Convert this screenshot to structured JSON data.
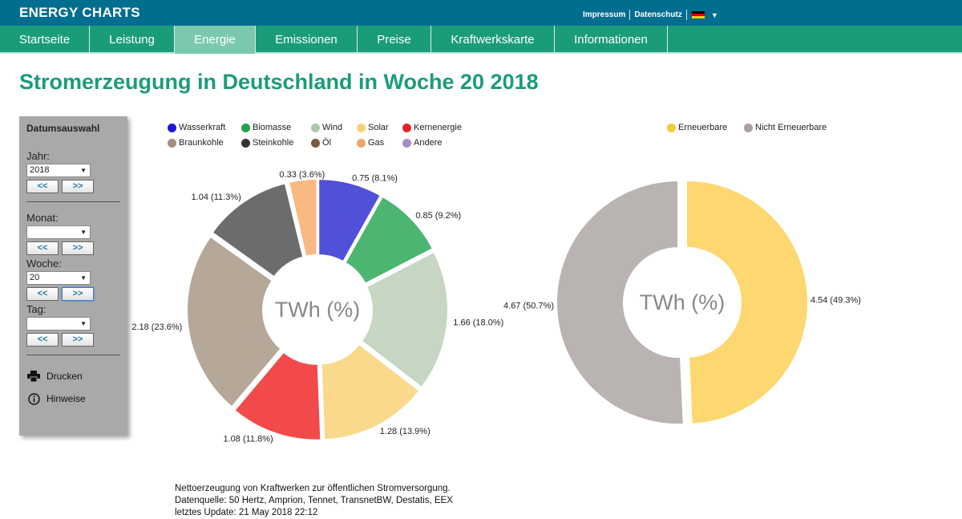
{
  "header": {
    "brand": "ENERGY CHARTS",
    "links": [
      "Impressum",
      "Datenschutz"
    ]
  },
  "nav": {
    "items": [
      "Startseite",
      "Leistung",
      "Energie",
      "Emissionen",
      "Preise",
      "Kraftwerkskarte",
      "Informationen"
    ],
    "active": "Energie"
  },
  "title": "Stromerzeugung in Deutschland in Woche 20 2018",
  "sidebar": {
    "title": "Datumsauswahl",
    "year_label": "Jahr:",
    "year_value": "2018",
    "month_label": "Monat:",
    "month_value": "",
    "week_label": "Woche:",
    "week_value": "20",
    "day_label": "Tag:",
    "day_value": "",
    "prev": "<<",
    "next": ">>",
    "print": "Drucken",
    "hints": "Hinweise"
  },
  "footer": {
    "line1": "Nettoerzeugung von Kraftwerken zur öffentlichen Stromversorgung.",
    "line2": "Datenquelle: 50 Hertz, Amprion, Tennet, TransnetBW, Destatis, EEX",
    "line3": "letztes Update: 21 May 2018 22:12"
  },
  "colors": {
    "topbar": "#006e8f",
    "navbar": "#1a9c7a",
    "nav_active": "#7bc9ad",
    "title": "#1a9c7a"
  },
  "chart_data": [
    {
      "type": "pie",
      "center_label": "TWh (%)",
      "legend": [
        {
          "name": "Wasserkraft",
          "color": "#1a1ad6"
        },
        {
          "name": "Biomasse",
          "color": "#22a14a"
        },
        {
          "name": "Wind",
          "color": "#a9c9a9"
        },
        {
          "name": "Solar",
          "color": "#f5d27a"
        },
        {
          "name": "Kernenergie",
          "color": "#e8222a"
        },
        {
          "name": "Braunkohle",
          "color": "#a38f7e"
        },
        {
          "name": "Steinkohle",
          "color": "#333333"
        },
        {
          "name": "Öl",
          "color": "#7a5a3c"
        },
        {
          "name": "Gas",
          "color": "#f2a66a"
        },
        {
          "name": "Andere",
          "color": "#a78bc6"
        }
      ],
      "slices": [
        {
          "name": "Wasserkraft",
          "value": 0.75,
          "label": "0.75 (8.1%)",
          "color": "#5050d8"
        },
        {
          "name": "Biomasse",
          "value": 0.85,
          "label": "0.85 (9.2%)",
          "color": "#4bb571"
        },
        {
          "name": "Wind",
          "value": 1.66,
          "label": "1.66 (18.0%)",
          "color": "#c7d6c2"
        },
        {
          "name": "Solar",
          "value": 1.28,
          "label": "1.28 (13.9%)",
          "color": "#fbd98c"
        },
        {
          "name": "Kernenergie",
          "value": 1.08,
          "label": "1.08 (11.8%)",
          "color": "#f24a4a"
        },
        {
          "name": "Braunkohle",
          "value": 2.18,
          "label": "2.18 (23.6%)",
          "color": "#b5a898"
        },
        {
          "name": "Steinkohle",
          "value": 1.04,
          "label": "1.04 (11.3%)",
          "color": "#6c6c6c"
        },
        {
          "name": "Öl",
          "value": 0.02,
          "label": "",
          "color": "#8a6f55"
        },
        {
          "name": "Gas",
          "value": 0.33,
          "label": "0.33 (3.6%)",
          "color": "#fab882"
        }
      ]
    },
    {
      "type": "pie",
      "center_label": "TWh (%)",
      "legend": [
        {
          "name": "Erneuerbare",
          "color": "#f8c93a"
        },
        {
          "name": "Nicht Erneuerbare",
          "color": "#a9a09c"
        }
      ],
      "slices": [
        {
          "name": "Erneuerbare",
          "value": 4.54,
          "label": "4.54 (49.3%)",
          "color": "#fdd871"
        },
        {
          "name": "Nicht Erneuerbare",
          "value": 4.67,
          "label": "4.67 (50.7%)",
          "color": "#b9b4b2"
        }
      ]
    }
  ]
}
